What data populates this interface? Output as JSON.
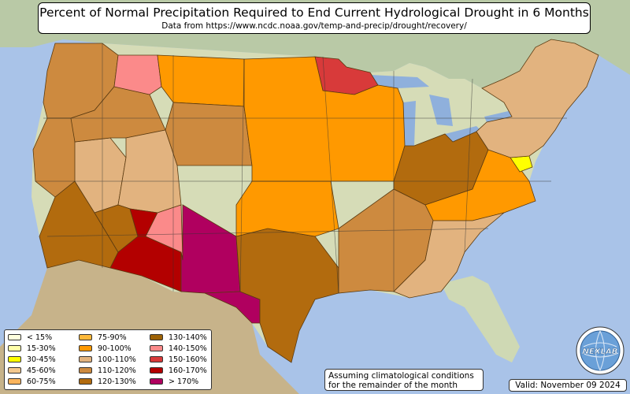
{
  "title": "Percent of Normal Precipitation Required to End Current Hydrological Drought in 6 Months",
  "subtitle": "Data from https://www.ncdc.noaa.gov/temp-and-precip/drought/recovery/",
  "legend": {
    "items": [
      {
        "label": "< 15%",
        "color": "#ffffdd"
      },
      {
        "label": "15-30%",
        "color": "#ffffaa"
      },
      {
        "label": "30-45%",
        "color": "#ffff00"
      },
      {
        "label": "45-60%",
        "color": "#f3c88e"
      },
      {
        "label": "60-75%",
        "color": "#fbb45c"
      },
      {
        "label": "75-90%",
        "color": "#fdb83a"
      },
      {
        "label": "90-100%",
        "color": "#ff9900"
      },
      {
        "label": "100-110%",
        "color": "#e2b37f"
      },
      {
        "label": "110-120%",
        "color": "#cd8a3f"
      },
      {
        "label": "120-130%",
        "color": "#b26b0e"
      },
      {
        "label": "130-140%",
        "color": "#9d6206"
      },
      {
        "label": "140-150%",
        "color": "#fb8a8a"
      },
      {
        "label": "150-160%",
        "color": "#d83a3a"
      },
      {
        "label": "160-170%",
        "color": "#b30000"
      },
      {
        "label": "> 170%",
        "color": "#b0005f"
      }
    ]
  },
  "assumption_note": "Assuming climatological conditions for the remainder of the month",
  "valid_label": "Valid: November 09 2024",
  "logo_text": "NEXLAB",
  "logo_name": "nexlab-globe-logo",
  "regions": [
    {
      "name": "pacific-northwest",
      "category": "110-120%"
    },
    {
      "name": "northern-california",
      "category": "110-120%"
    },
    {
      "name": "southern-california",
      "category": "120-130%"
    },
    {
      "name": "nevada-basin",
      "category": "100-110%"
    },
    {
      "name": "idaho-oregon",
      "category": "110-120%"
    },
    {
      "name": "western-montana",
      "category": "140-150%"
    },
    {
      "name": "central-montana",
      "category": "90-100%"
    },
    {
      "name": "wyoming",
      "category": "110-120%"
    },
    {
      "name": "utah-basin",
      "category": "100-110%"
    },
    {
      "name": "western-arizona",
      "category": "120-130%"
    },
    {
      "name": "nw-arizona",
      "category": "160-170%"
    },
    {
      "name": "southern-arizona",
      "category": "160-170%"
    },
    {
      "name": "western-new-mexico",
      "category": "140-150%"
    },
    {
      "name": "southern-new-mexico",
      "category": "> 170%"
    },
    {
      "name": "west-texas",
      "category": "> 170%"
    },
    {
      "name": "central-texas",
      "category": "120-130%"
    },
    {
      "name": "oklahoma",
      "category": "90-100%"
    },
    {
      "name": "northern-minnesota",
      "category": "150-160%"
    },
    {
      "name": "upper-midwest",
      "category": "90-100%"
    },
    {
      "name": "ohio-valley",
      "category": "120-130%"
    },
    {
      "name": "appalachians",
      "category": "90-100%"
    },
    {
      "name": "maryland",
      "category": "30-45%"
    },
    {
      "name": "new-england",
      "category": "100-110%"
    },
    {
      "name": "lower-mississippi",
      "category": "110-120%"
    },
    {
      "name": "gulf-coast",
      "category": "100-110%"
    }
  ]
}
